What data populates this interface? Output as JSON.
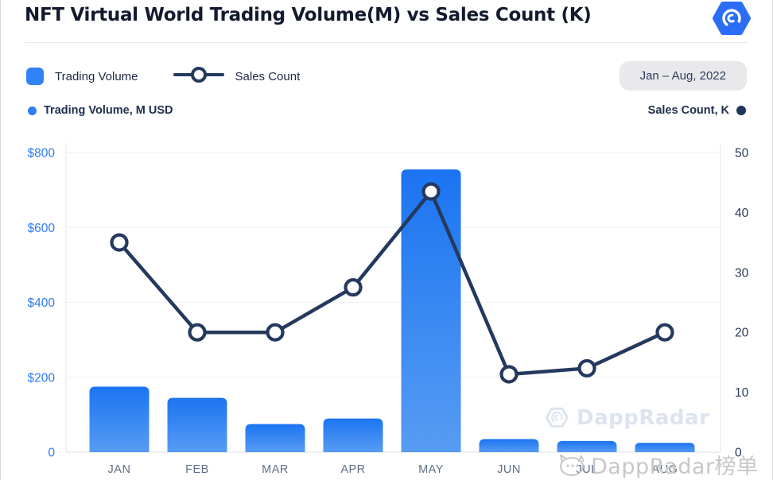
{
  "header": {
    "title": "NFT Virtual World Trading Volume(M) vs Sales Count (K)"
  },
  "legend": {
    "trading_volume_label": "Trading Volume",
    "sales_count_label": "Sales Count",
    "date_range": "Jan – Aug, 2022"
  },
  "axis_captions": {
    "left": "Trading Volume, M USD",
    "right": "Sales Count, K"
  },
  "watermarks": {
    "in_chart": "DappRadar",
    "bottom": "DappRadar榜单"
  },
  "colors": {
    "bar_gradient_top": "#1b74f2",
    "bar_gradient_bottom": "#579cf3",
    "legend_swatch": "#3282f7",
    "line": "#24395e",
    "marker_fill": "#ffffff",
    "left_axis_text": "#2e7cf6",
    "right_axis_text": "#2b3a55",
    "x_label_text": "#5f6e87",
    "grid": "#f1f2f5",
    "axis_edge": "#e7eaef",
    "title_text": "#131a2e"
  },
  "chart_data": {
    "type": "combo",
    "title": "NFT Virtual World Trading Volume(M) vs Sales Count (K)",
    "categories": [
      "JAN",
      "FEB",
      "MAR",
      "APR",
      "MAY",
      "JUN",
      "JUL",
      "AUG"
    ],
    "series": [
      {
        "name": "Trading Volume",
        "chart_type": "bar",
        "axis": "left",
        "unit": "M USD",
        "values": [
          175,
          145,
          75,
          90,
          755,
          35,
          30,
          25
        ]
      },
      {
        "name": "Sales Count",
        "chart_type": "line",
        "axis": "right",
        "unit": "K",
        "values": [
          35,
          20,
          20,
          27.5,
          43.5,
          13,
          14,
          20
        ]
      }
    ],
    "left_axis": {
      "min": 0,
      "max": 800,
      "ticks": [
        {
          "label": "$800",
          "value": 800
        },
        {
          "label": "$600",
          "value": 600
        },
        {
          "label": "$400",
          "value": 400
        },
        {
          "label": "$200",
          "value": 200
        },
        {
          "label": "0",
          "value": 0
        }
      ]
    },
    "right_axis": {
      "min": 0,
      "max": 50,
      "ticks": [
        {
          "label": "50",
          "value": 50
        },
        {
          "label": "40",
          "value": 40
        },
        {
          "label": "30",
          "value": 30
        },
        {
          "label": "20",
          "value": 20
        },
        {
          "label": "10",
          "value": 10
        },
        {
          "label": "0",
          "value": 0
        }
      ]
    },
    "grid": true,
    "legend_position": "top-left",
    "period": "Jan – Aug, 2022"
  }
}
